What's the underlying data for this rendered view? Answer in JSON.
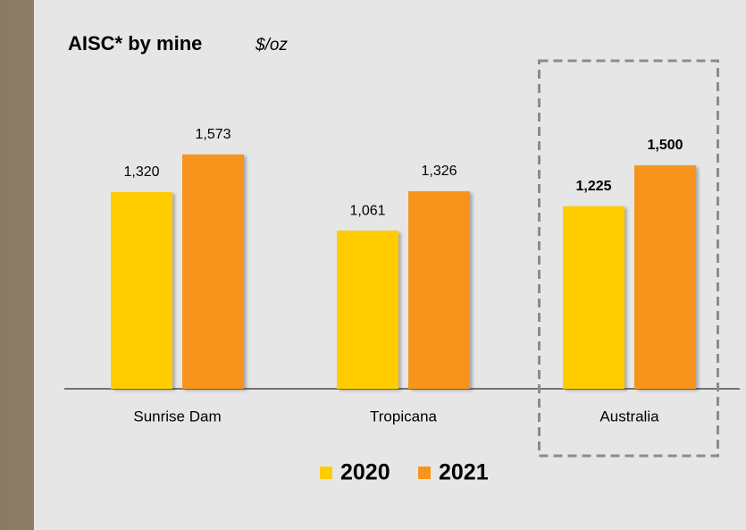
{
  "chart_data": {
    "type": "bar",
    "title": "AISC* by mine",
    "unit": "$/oz",
    "categories": [
      "Sunrise Dam",
      "Tropicana",
      "Australia"
    ],
    "series": [
      {
        "name": "2020",
        "color": "#ffcc00",
        "values": [
          1320,
          1061,
          1225
        ],
        "value_labels": [
          "1,320",
          "1,061",
          "1,225"
        ]
      },
      {
        "name": "2021",
        "color": "#f7941d",
        "values": [
          1573,
          1326,
          1500
        ],
        "value_labels": [
          "1,573",
          "1,326",
          "1,500"
        ]
      }
    ],
    "highlight_category": 2
  }
}
